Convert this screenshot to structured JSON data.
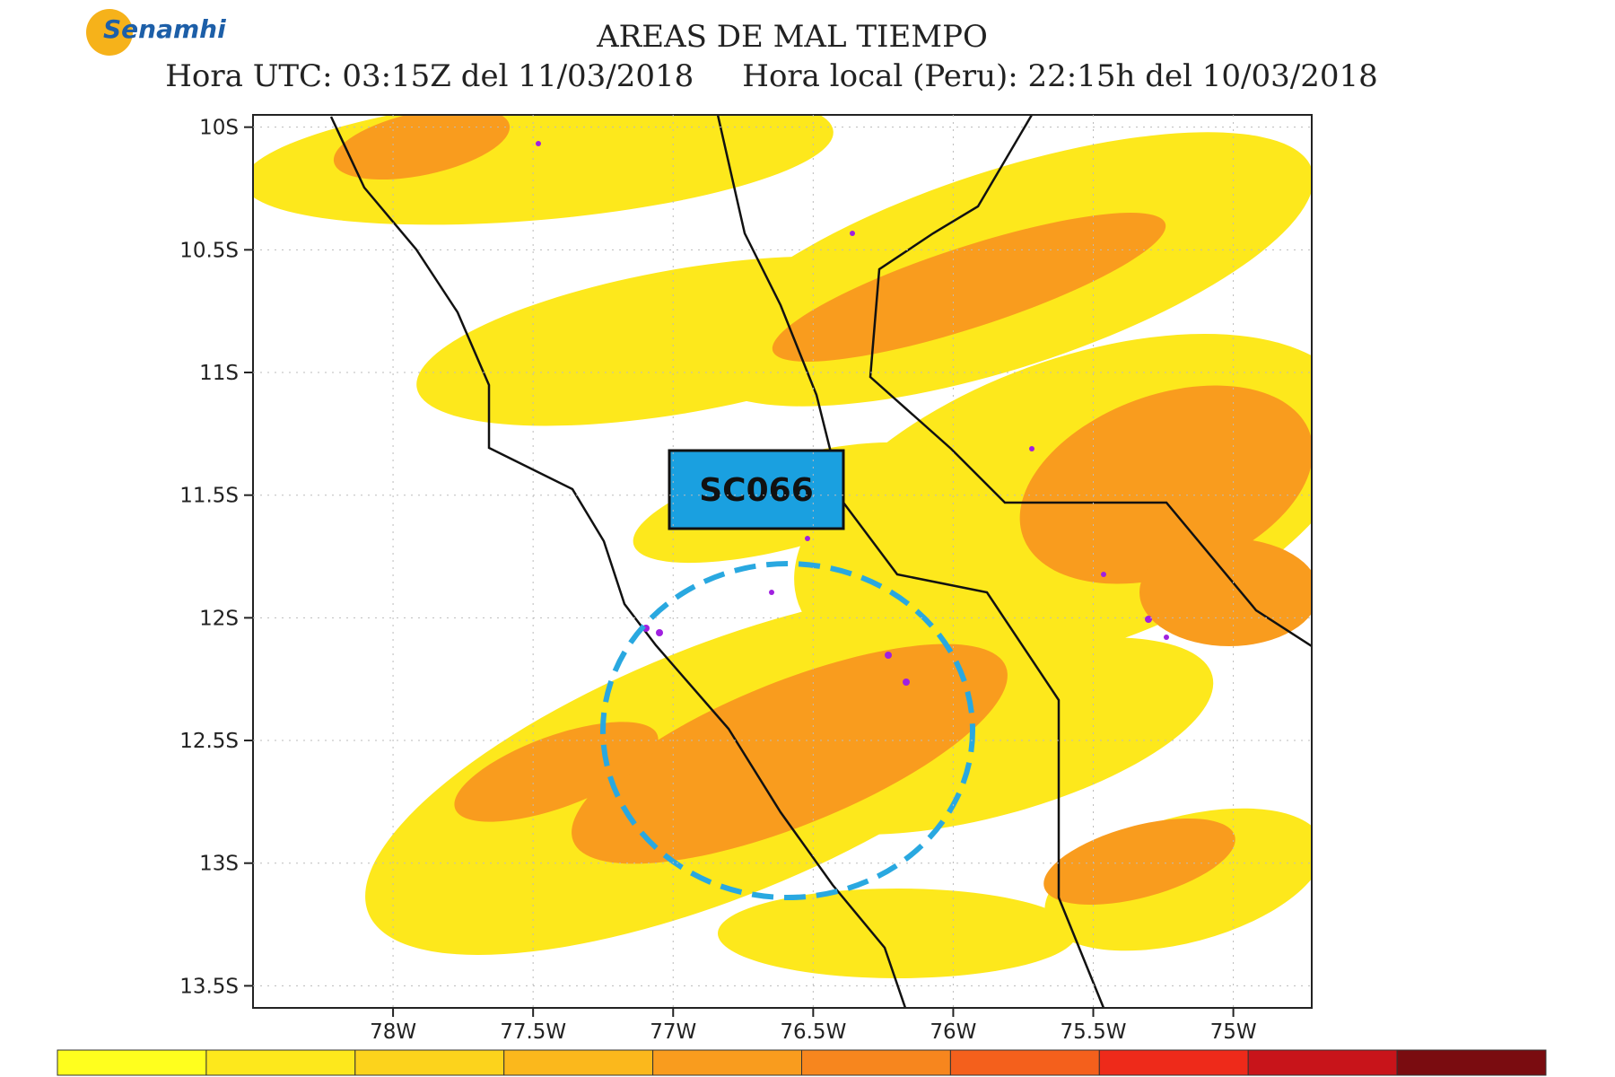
{
  "header": {
    "logo": "Senamhi",
    "title": "AREAS DE MAL TIEMPO",
    "subtitle": "Hora UTC: 03:15Z del 11/03/2018     Hora local (Peru): 22:15h del 10/03/2018"
  },
  "map": {
    "xlim": [
      -78.5,
      -74.72
    ],
    "ylim": [
      -13.59,
      -9.95
    ],
    "xticks": [
      {
        "value": -78,
        "label": "78W"
      },
      {
        "value": -77.5,
        "label": "77.5W"
      },
      {
        "value": -77,
        "label": "77W"
      },
      {
        "value": -76.5,
        "label": "76.5W"
      },
      {
        "value": -76,
        "label": "76W"
      },
      {
        "value": -75.5,
        "label": "75.5W"
      },
      {
        "value": -75,
        "label": "75W"
      }
    ],
    "yticks": [
      {
        "value": -10,
        "label": "10S"
      },
      {
        "value": -10.5,
        "label": "10.5S"
      },
      {
        "value": -11,
        "label": "11S"
      },
      {
        "value": -11.5,
        "label": "11.5S"
      },
      {
        "value": -12,
        "label": "12S"
      },
      {
        "value": -12.5,
        "label": "12.5S"
      },
      {
        "value": -13,
        "label": "13S"
      },
      {
        "value": -13.5,
        "label": "13.5S"
      }
    ],
    "annotation": "SC066",
    "colorbar": [
      "#ffff1e",
      "#fde81c",
      "#fcd31c",
      "#fbb81c",
      "#f99c1e",
      "#f7861e",
      "#f4601c",
      "#ee2a1a",
      "#c8141a",
      "#7a0c10"
    ]
  }
}
